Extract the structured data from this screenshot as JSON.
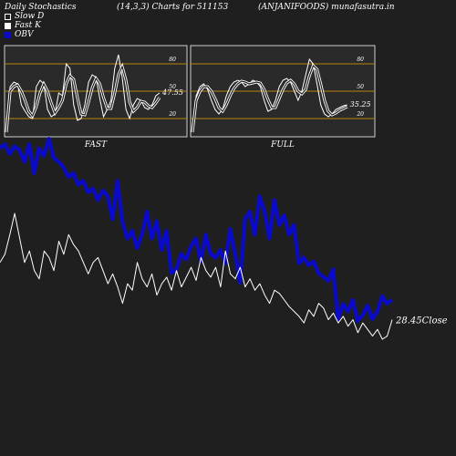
{
  "header": {
    "left": "Daily Stochastics",
    "center": "(14,3,3) Charts for 511153",
    "right": "(ANJANIFOODS) munafasutra.in"
  },
  "legend": [
    {
      "label": "Slow  D",
      "color": "#1f1f1f"
    },
    {
      "label": "Fast  K",
      "color": "#ffffff"
    },
    {
      "label": "OBV",
      "color": "#0a0acc"
    }
  ],
  "colors": {
    "background": "#1f1f1f",
    "panel": "#2a2a2a",
    "level_line": "#b8860b",
    "obv": "#0a0acc",
    "price": "#ffffff"
  },
  "panels": [
    {
      "id": "fast",
      "label": "FAST",
      "last_value": "47.55"
    },
    {
      "id": "full",
      "label": "FULL",
      "last_value": "35.25"
    }
  ],
  "chart_data": [
    {
      "type": "line",
      "title": "FAST",
      "ylim": [
        0,
        100
      ],
      "yticks": [
        "80",
        "50",
        "20"
      ],
      "levels": [
        80,
        50,
        20
      ],
      "series": [
        {
          "name": "Fast  K",
          "values": [
            5,
            55,
            60,
            58,
            35,
            28,
            22,
            20,
            55,
            62,
            58,
            30,
            22,
            25,
            48,
            45,
            80,
            75,
            35,
            18,
            20,
            35,
            60,
            68,
            65,
            42,
            22,
            30,
            40,
            75,
            90,
            65,
            30,
            20,
            35,
            42,
            40,
            32,
            30,
            35,
            45,
            48
          ]
        },
        {
          "name": "Slow  D",
          "values": [
            5,
            50,
            55,
            57,
            50,
            40,
            28,
            23,
            33,
            48,
            58,
            50,
            37,
            26,
            32,
            40,
            58,
            67,
            63,
            43,
            25,
            24,
            38,
            54,
            64,
            58,
            43,
            31,
            31,
            48,
            68,
            77,
            62,
            38,
            28,
            32,
            39,
            38,
            34,
            32,
            37,
            43
          ]
        }
      ]
    },
    {
      "type": "line",
      "title": "FULL",
      "ylim": [
        0,
        100
      ],
      "yticks": [
        "80",
        "50",
        "20"
      ],
      "levels": [
        80,
        50,
        20
      ],
      "series": [
        {
          "name": "Fast  K",
          "values": [
            5,
            45,
            55,
            58,
            52,
            40,
            30,
            25,
            30,
            45,
            55,
            60,
            62,
            60,
            55,
            58,
            62,
            60,
            55,
            40,
            28,
            30,
            40,
            55,
            62,
            64,
            60,
            50,
            40,
            50,
            68,
            85,
            80,
            58,
            35,
            25,
            22,
            25,
            30,
            32,
            34,
            35
          ]
        },
        {
          "name": "Slow  D",
          "values": [
            5,
            40,
            50,
            55,
            55,
            50,
            42,
            32,
            28,
            35,
            45,
            53,
            58,
            61,
            60,
            58,
            59,
            60,
            59,
            52,
            41,
            32,
            32,
            42,
            52,
            59,
            62,
            58,
            50,
            47,
            52,
            67,
            78,
            74,
            58,
            40,
            28,
            24,
            26,
            29,
            31,
            33
          ]
        }
      ]
    },
    {
      "type": "line",
      "title": "",
      "series": [
        {
          "name": "OBV",
          "values": [
            95,
            97,
            92,
            96,
            94,
            88,
            97,
            82,
            95,
            91,
            100,
            90,
            88,
            85,
            80,
            82,
            76,
            78,
            72,
            74,
            68,
            73,
            70,
            58,
            78,
            57,
            48,
            52,
            43,
            50,
            62,
            48,
            57,
            42,
            52,
            30,
            32,
            40,
            37,
            44,
            48,
            36,
            50,
            40,
            38,
            42,
            35,
            53,
            40,
            25,
            58,
            62,
            50,
            70,
            62,
            48,
            68,
            55,
            60,
            50,
            55,
            35,
            38,
            34,
            36,
            30,
            28,
            26,
            32,
            6,
            14,
            10,
            16,
            5,
            8,
            13,
            6,
            10,
            18,
            14,
            16
          ]
        },
        {
          "name": "Close",
          "last_value": "28.45",
          "label": "Close",
          "values": [
            55,
            60,
            72,
            85,
            70,
            55,
            62,
            50,
            45,
            62,
            58,
            50,
            68,
            60,
            72,
            66,
            62,
            55,
            48,
            55,
            58,
            50,
            42,
            48,
            40,
            30,
            42,
            38,
            55,
            45,
            40,
            48,
            35,
            42,
            46,
            38,
            50,
            40,
            46,
            52,
            44,
            58,
            50,
            46,
            52,
            40,
            62,
            48,
            45,
            52,
            40,
            45,
            38,
            42,
            35,
            30,
            38,
            36,
            32,
            28,
            25,
            22,
            18,
            26,
            22,
            30,
            27,
            20,
            24,
            18,
            22,
            16,
            20,
            12,
            18,
            14,
            10,
            14,
            8,
            10,
            20
          ]
        }
      ]
    }
  ]
}
